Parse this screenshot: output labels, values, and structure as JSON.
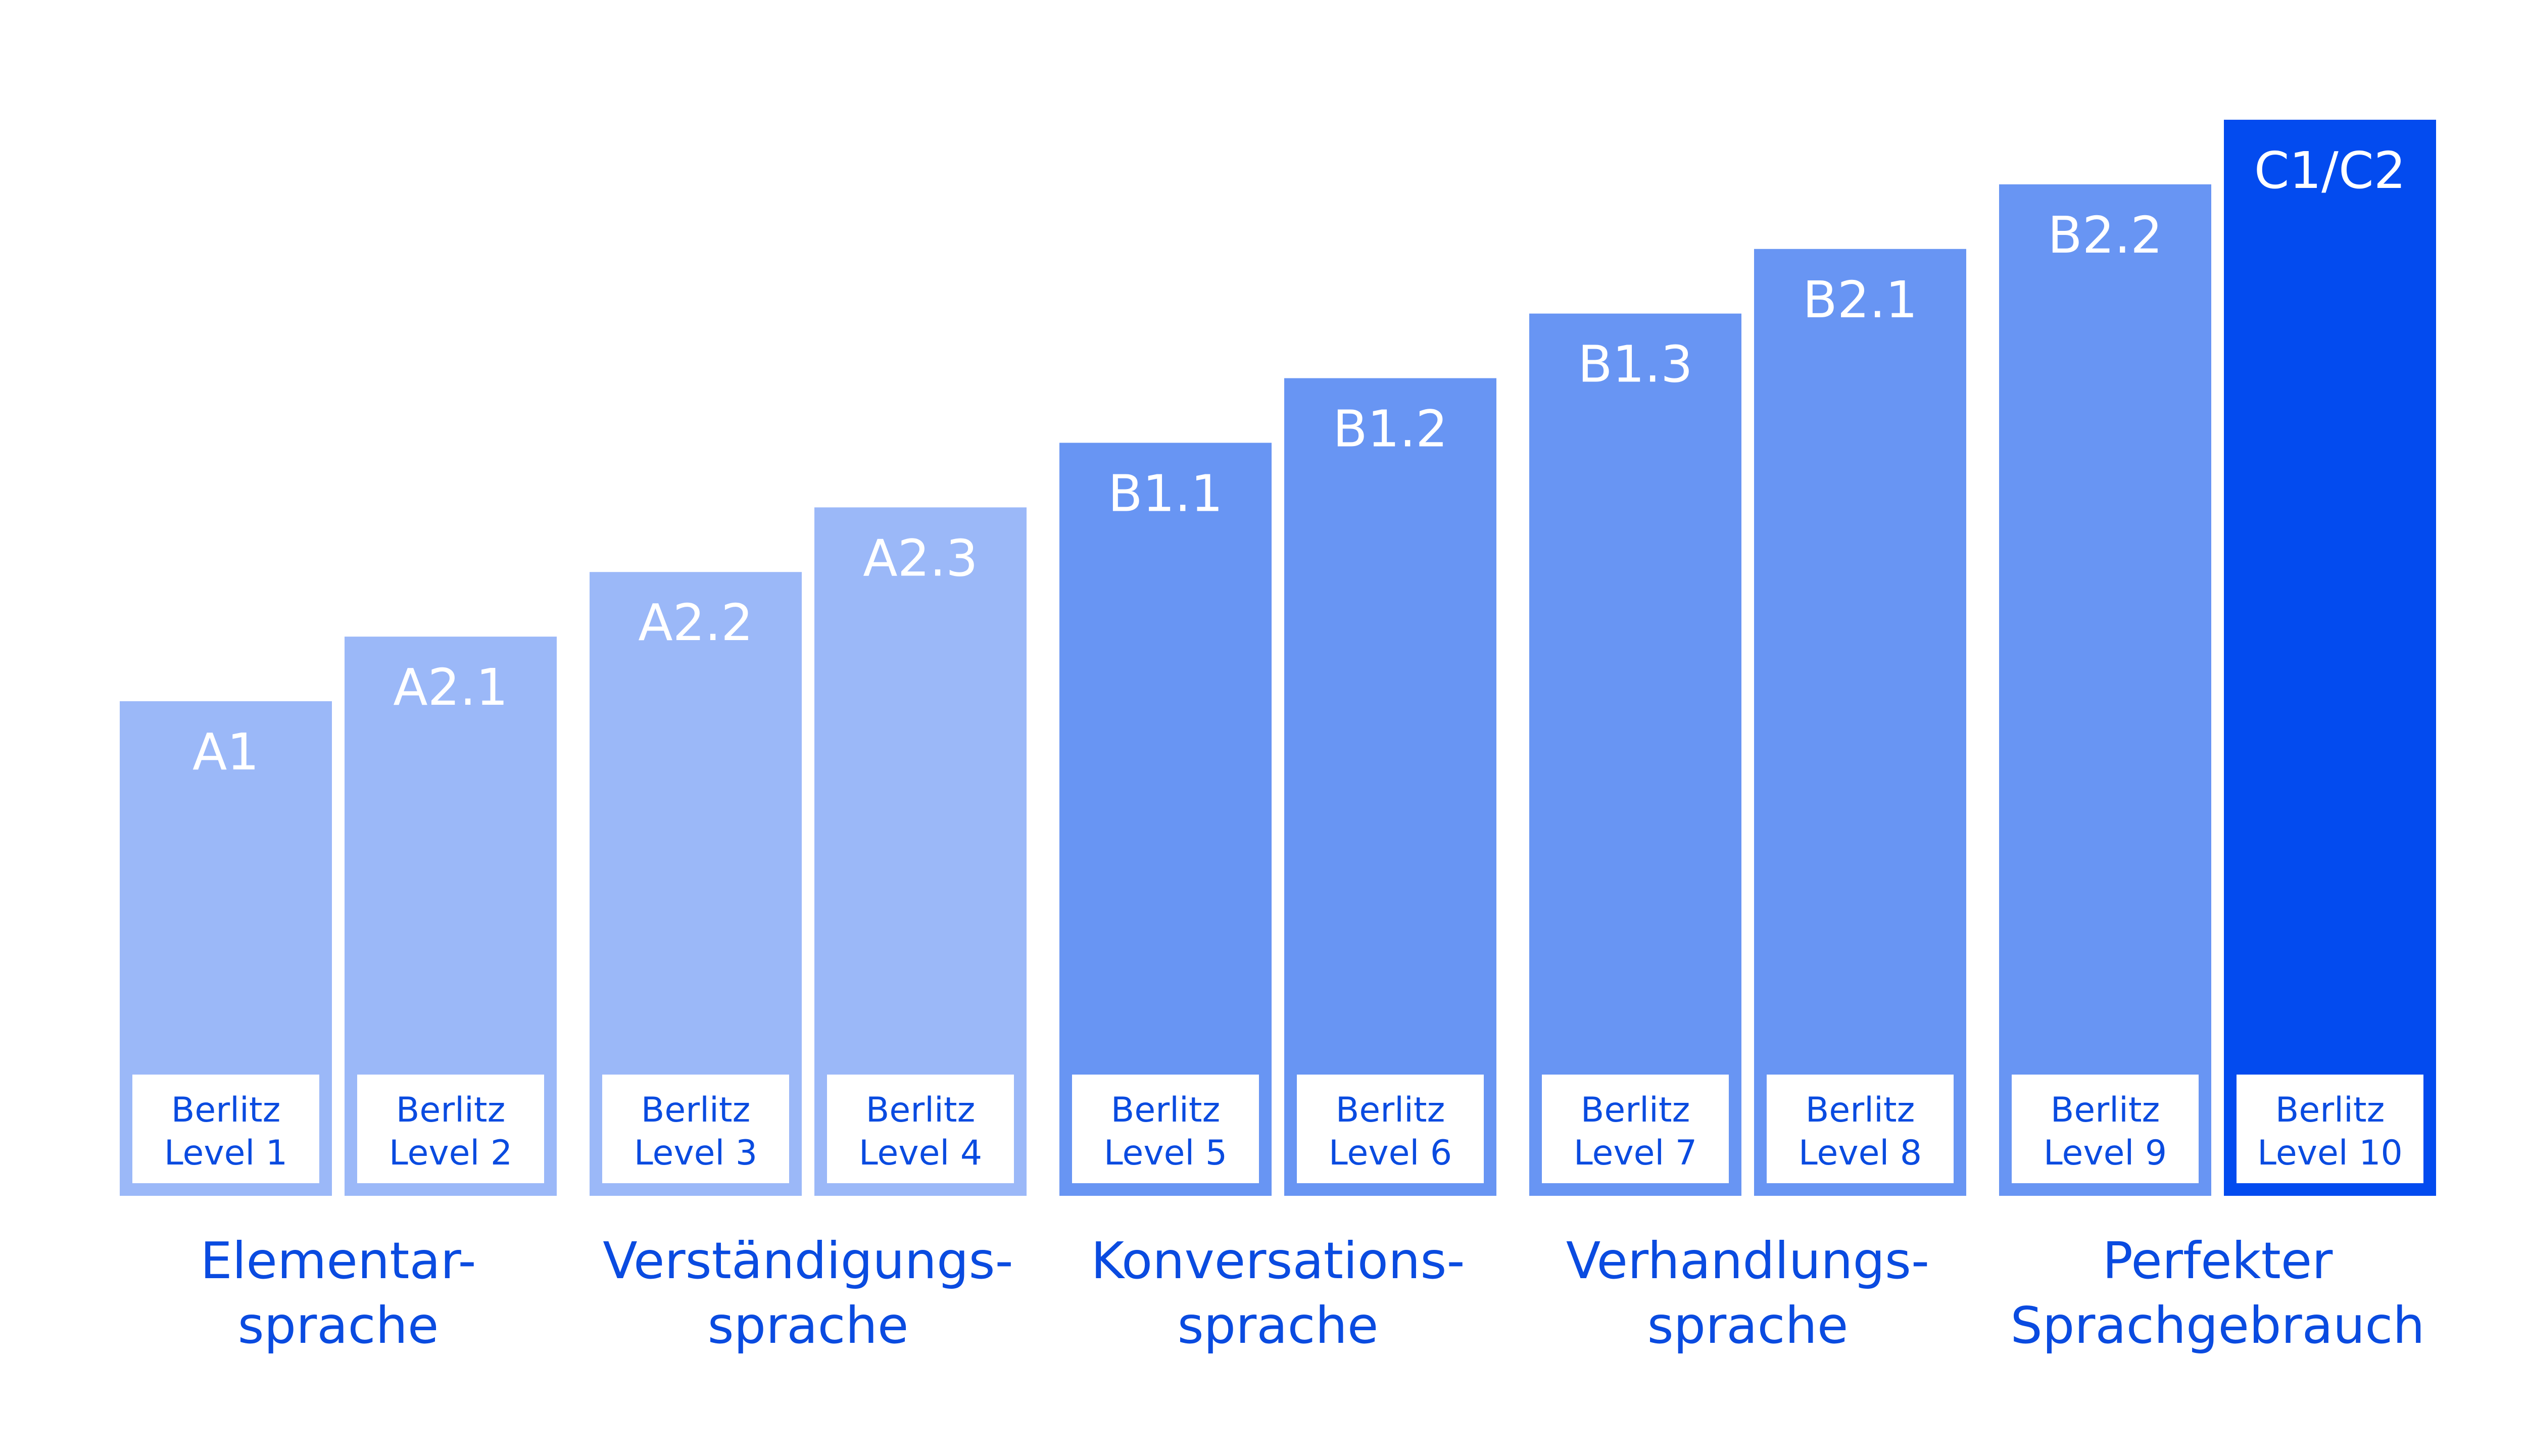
{
  "chart_data": {
    "type": "bar",
    "title": "",
    "xlabel": "",
    "ylabel": "",
    "grid": false,
    "legend": "none",
    "categories": [
      "A1",
      "A2.1",
      "A2.2",
      "A2.3",
      "B1.1",
      "B1.2",
      "B1.3",
      "B2.1",
      "B2.2",
      "C1/C2"
    ],
    "values": [
      1,
      2,
      3,
      4,
      5,
      6,
      7,
      8,
      9,
      10
    ],
    "ylim": [
      0,
      10
    ],
    "level_labels": [
      [
        "Berlitz",
        "Level 1"
      ],
      [
        "Berlitz",
        "Level 2"
      ],
      [
        "Berlitz",
        "Level 3"
      ],
      [
        "Berlitz",
        "Level 4"
      ],
      [
        "Berlitz",
        "Level 5"
      ],
      [
        "Berlitz",
        "Level 6"
      ],
      [
        "Berlitz",
        "Level 7"
      ],
      [
        "Berlitz",
        "Level 8"
      ],
      [
        "Berlitz",
        "Level 9"
      ],
      [
        "Berlitz",
        "Level 10"
      ]
    ],
    "bar_colors": [
      "#9bb8f8",
      "#9bb8f8",
      "#9bb8f8",
      "#9bb8f8",
      "#6895f3",
      "#6895f3",
      "#6895f3",
      "#6895f3",
      "#6895f3",
      "#034bef"
    ],
    "groups": [
      {
        "lines": [
          "Elementar-",
          "sprache"
        ],
        "bars": [
          0,
          1
        ]
      },
      {
        "lines": [
          "Verständigungs-",
          "sprache"
        ],
        "bars": [
          2,
          3
        ]
      },
      {
        "lines": [
          "Konversations-",
          "sprache"
        ],
        "bars": [
          4,
          5
        ]
      },
      {
        "lines": [
          "Verhandlungs-",
          "sprache"
        ],
        "bars": [
          6,
          7
        ]
      },
      {
        "lines": [
          "Perfekter",
          "Sprachgebrauch"
        ],
        "bars": [
          8,
          9
        ]
      }
    ],
    "label_color": "#0a4be0"
  }
}
